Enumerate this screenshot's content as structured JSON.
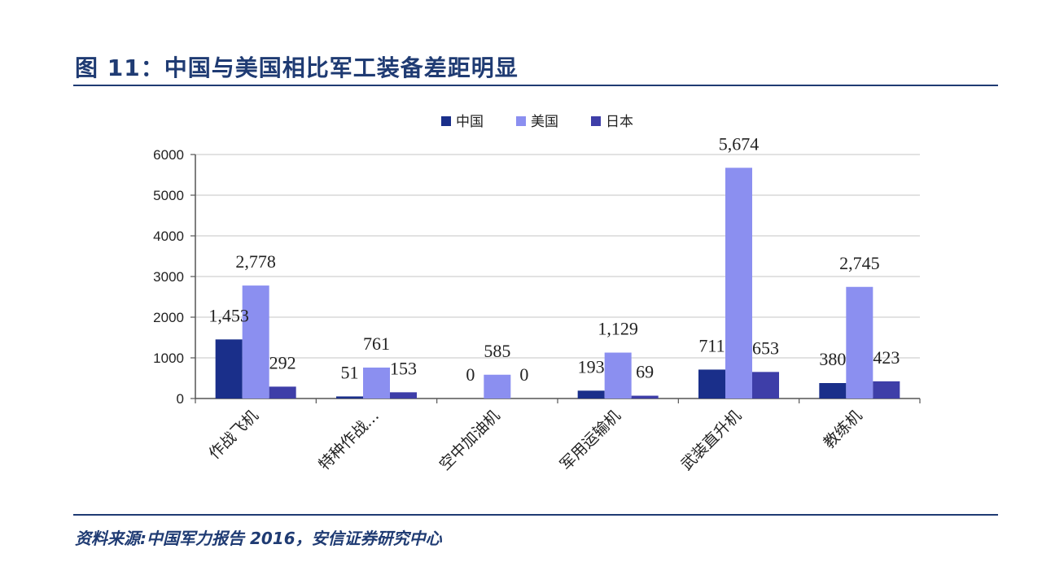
{
  "figure": {
    "title": "图 11：中国与美国相比军工装备差距明显",
    "source": "资料来源:中国军力报告 2016，安信证券研究中心"
  },
  "chart_data": {
    "type": "bar",
    "categories": [
      "作战飞机",
      "特种作战…",
      "空中加油机",
      "军用运输机",
      "武装直升机",
      "教练机"
    ],
    "series": [
      {
        "name": "中国",
        "color": "#1a2f8a",
        "values": [
          1453,
          51,
          0,
          193,
          711,
          380
        ],
        "labels": [
          "1,453",
          "51",
          "0",
          "193",
          "711",
          "380"
        ]
      },
      {
        "name": "美国",
        "color": "#8b8ff0",
        "values": [
          2778,
          761,
          585,
          1129,
          5674,
          2745
        ],
        "labels": [
          "2,778",
          "761",
          "585",
          "1,129",
          "5,674",
          "2,745"
        ]
      },
      {
        "name": "日本",
        "color": "#3e3ea8",
        "values": [
          292,
          153,
          0,
          69,
          653,
          423
        ],
        "labels": [
          "292",
          "153",
          "0",
          "69",
          "653",
          "423"
        ]
      }
    ],
    "yticks": [
      "0",
      "1000",
      "2000",
      "3000",
      "4000",
      "5000",
      "6000"
    ],
    "ylim": [
      0,
      6000
    ],
    "grid": true,
    "legend_position": "top"
  }
}
